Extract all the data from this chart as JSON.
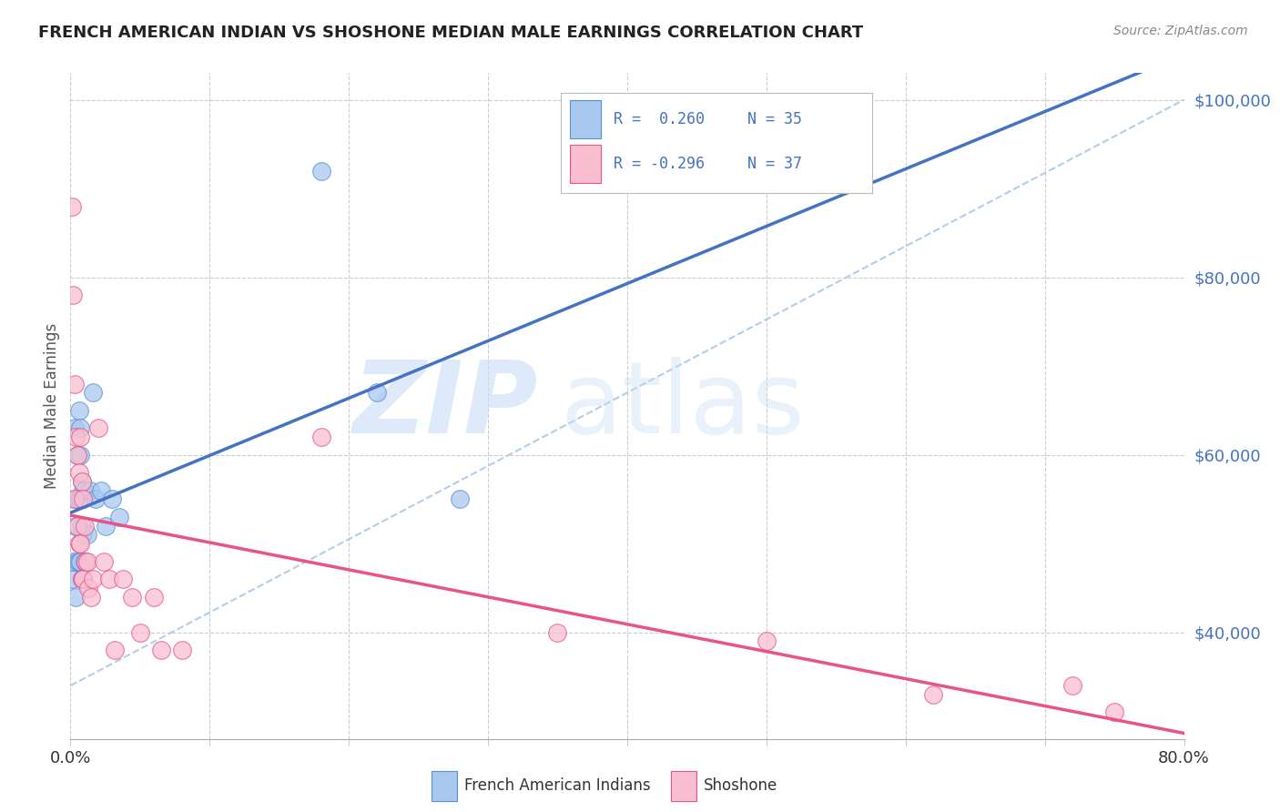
{
  "title": "FRENCH AMERICAN INDIAN VS SHOSHONE MEDIAN MALE EARNINGS CORRELATION CHART",
  "source": "Source: ZipAtlas.com",
  "ylabel": "Median Male Earnings",
  "background_color": "#ffffff",
  "watermark_zip": "ZIP",
  "watermark_atlas": "atlas",
  "series1_label": "French American Indians",
  "series1_color": "#a8c8f0",
  "series1_edge": "#5b8fd4",
  "series1_R": "0.260",
  "series1_N": "35",
  "series2_label": "Shoshone",
  "series2_color": "#f9bfd0",
  "series2_edge": "#e8538a",
  "series2_R": "-0.296",
  "series2_N": "37",
  "xmin": 0.0,
  "xmax": 0.8,
  "ymin": 28000,
  "ymax": 103000,
  "yticks": [
    40000,
    60000,
    80000,
    100000
  ],
  "ytick_labels": [
    "$40,000",
    "$60,000",
    "$80,000",
    "$100,000"
  ],
  "xticks": [
    0.0,
    0.1,
    0.2,
    0.3,
    0.4,
    0.5,
    0.6,
    0.7,
    0.8
  ],
  "grid_color": "#cccccc",
  "trend1_color": "#4472c4",
  "trend2_color": "#e8538a",
  "ref_line_color": "#aac8e8",
  "ytick_color": "#4472c4",
  "french_x": [
    0.001,
    0.002,
    0.003,
    0.003,
    0.004,
    0.004,
    0.005,
    0.005,
    0.005,
    0.006,
    0.006,
    0.006,
    0.007,
    0.007,
    0.007,
    0.007,
    0.008,
    0.008,
    0.008,
    0.009,
    0.009,
    0.009,
    0.01,
    0.01,
    0.012,
    0.014,
    0.016,
    0.018,
    0.022,
    0.025,
    0.03,
    0.035,
    0.18,
    0.22,
    0.28
  ],
  "french_y": [
    46000,
    48000,
    63000,
    55000,
    52000,
    44000,
    60000,
    55000,
    48000,
    65000,
    55000,
    48000,
    63000,
    60000,
    55000,
    48000,
    57000,
    52000,
    46000,
    56000,
    51000,
    46000,
    56000,
    48000,
    51000,
    56000,
    67000,
    55000,
    56000,
    52000,
    55000,
    53000,
    92000,
    67000,
    55000
  ],
  "shoshone_x": [
    0.001,
    0.002,
    0.003,
    0.003,
    0.004,
    0.005,
    0.005,
    0.006,
    0.006,
    0.007,
    0.007,
    0.008,
    0.008,
    0.009,
    0.009,
    0.01,
    0.011,
    0.012,
    0.013,
    0.015,
    0.016,
    0.02,
    0.024,
    0.028,
    0.032,
    0.038,
    0.044,
    0.05,
    0.06,
    0.065,
    0.08,
    0.18,
    0.35,
    0.5,
    0.62,
    0.72,
    0.75
  ],
  "shoshone_y": [
    88000,
    78000,
    68000,
    55000,
    62000,
    60000,
    52000,
    58000,
    50000,
    62000,
    50000,
    57000,
    46000,
    55000,
    46000,
    52000,
    48000,
    48000,
    45000,
    44000,
    46000,
    63000,
    48000,
    46000,
    38000,
    46000,
    44000,
    40000,
    44000,
    38000,
    38000,
    62000,
    40000,
    39000,
    33000,
    34000,
    31000
  ],
  "ref_line_x": [
    0.0,
    0.8
  ],
  "ref_line_y": [
    34000,
    100000
  ]
}
